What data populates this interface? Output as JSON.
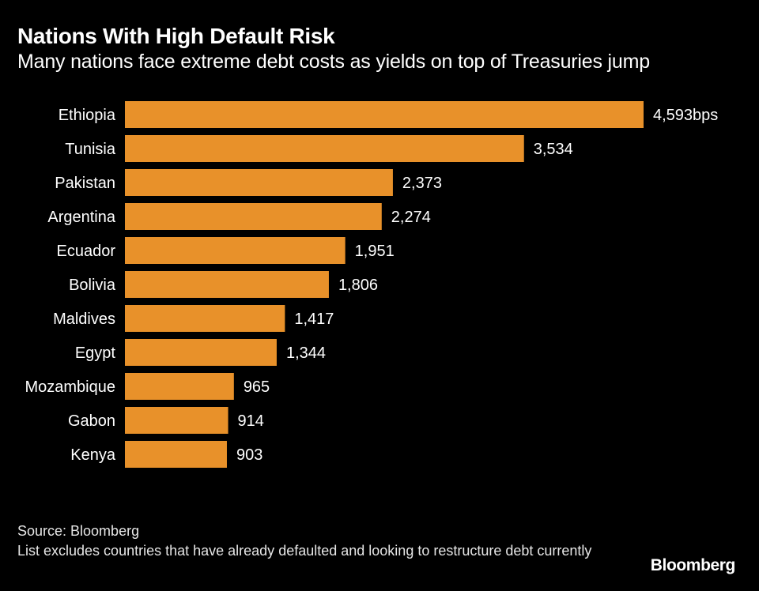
{
  "chart_data": {
    "type": "bar",
    "orientation": "horizontal",
    "title": "Nations With High Default Risk",
    "subtitle": "Many nations face extreme debt costs as yields on top of Treasuries jump",
    "categories": [
      "Ethiopia",
      "Tunisia",
      "Pakistan",
      "Argentina",
      "Ecuador",
      "Bolivia",
      "Maldives",
      "Egypt",
      "Mozambique",
      "Gabon",
      "Kenya"
    ],
    "values": [
      4593,
      3534,
      2373,
      2274,
      1951,
      1806,
      1417,
      1344,
      965,
      914,
      903
    ],
    "value_labels": [
      "4,593bps",
      "3,534",
      "2,373",
      "2,274",
      "1,951",
      "1,806",
      "1,417",
      "1,344",
      "965",
      "914",
      "903"
    ],
    "unit": "bps",
    "xlim": [
      0,
      4593
    ],
    "grid": false,
    "legend": "none",
    "xlabel": "",
    "ylabel": ""
  },
  "colors": {
    "bar": "#E8912A",
    "background": "#000000",
    "text": "#FFFFFF"
  },
  "footer": {
    "source": "Source: Bloomberg",
    "note": "List excludes countries that have already defaulted and looking to restructure debt currently"
  },
  "brand": "Bloomberg"
}
